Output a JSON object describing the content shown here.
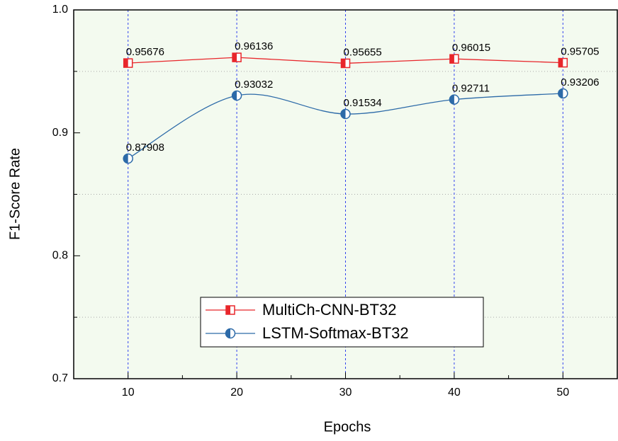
{
  "chart_data": {
    "type": "line",
    "x_label": "Epochs",
    "y_label": "F1-Score Rate",
    "x": [
      10,
      20,
      30,
      40,
      50
    ],
    "series": [
      {
        "name": "MultiCh-CNN-BT32",
        "color": "#e8262b",
        "marker": "square",
        "smooth": false,
        "values": [
          0.95676,
          0.96136,
          0.95655,
          0.96015,
          0.95705
        ]
      },
      {
        "name": "LSTM-Softmax-BT32",
        "color": "#2c6aa8",
        "marker": "circle",
        "smooth": true,
        "values": [
          0.87908,
          0.93032,
          0.91534,
          0.92711,
          0.93206
        ]
      }
    ],
    "xlim": [
      5,
      55
    ],
    "xticks": [
      10,
      20,
      30,
      40,
      50
    ],
    "x_minor_ticks": [
      15,
      25,
      35,
      45
    ],
    "ylim": [
      0.7,
      1.0
    ],
    "yticks": [
      0.7,
      0.8,
      0.9,
      {
        "value": 1.0,
        "label": "1.0"
      }
    ],
    "y_minor_ticks": [
      0.75,
      0.85,
      0.95
    ],
    "grid": true,
    "background": "#f3faef"
  }
}
